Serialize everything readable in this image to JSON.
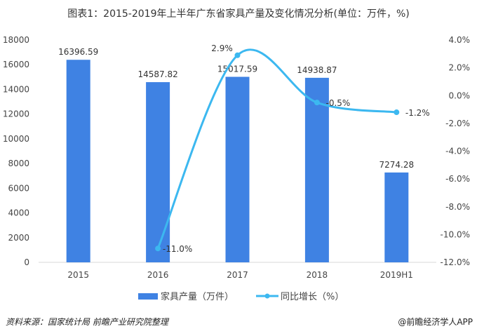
{
  "title": "图表1：2015-2019年上半年广东省家具产量及变化情况分析(单位：万件，%)",
  "source": "资料来源：国家统计局 前瞻产业研究院整理",
  "credit": "@前瞻经济学人APP",
  "chart_data": {
    "type": "bar+line",
    "title": "图表1：2015-2019年上半年广东省家具产量及变化情况分析(单位：万件，%)",
    "categories": [
      "2015",
      "2016",
      "2017",
      "2018",
      "2019H1"
    ],
    "series": [
      {
        "name": "家具产量（万件）",
        "type": "bar",
        "axis": "left",
        "values": [
          16396.59,
          14587.82,
          15017.59,
          14938.87,
          7274.28
        ],
        "labels": [
          "16396.59",
          "14587.82",
          "15017.59",
          "14938.87",
          "7274.28"
        ],
        "color": "#3f82e3"
      },
      {
        "name": "同比增长（%）",
        "type": "line",
        "axis": "right",
        "values": [
          null,
          -11.0,
          2.9,
          -0.5,
          -1.2
        ],
        "labels": [
          "",
          "-11.0%",
          "2.9%",
          "-0.5%",
          "-1.2%"
        ],
        "color": "#3cb8f0",
        "smooth": true
      }
    ],
    "left_axis": {
      "min": 0,
      "max": 18000,
      "ticks": [
        "0",
        "2000",
        "4000",
        "6000",
        "8000",
        "10000",
        "12000",
        "14000",
        "16000",
        "18000"
      ]
    },
    "right_axis": {
      "min": -12,
      "max": 4,
      "ticks": [
        "-12.0%",
        "-10.0%",
        "-8.0%",
        "-6.0%",
        "-4.0%",
        "-2.0%",
        "0.0%",
        "2.0%",
        "4.0%"
      ]
    },
    "grid": false,
    "legend": "bottom"
  }
}
